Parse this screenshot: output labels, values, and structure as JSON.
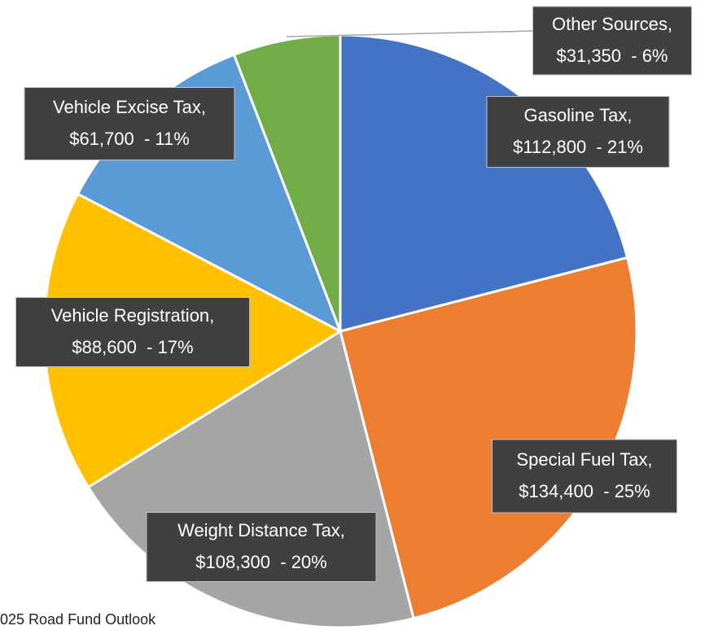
{
  "chart_data": {
    "type": "pie",
    "categories": [
      "Gasoline Tax,",
      "Special Fuel Tax,",
      "Weight Distance Tax,",
      "Vehicle Registration,",
      "Vehicle Excise Tax,",
      "Other Sources,"
    ],
    "values": [
      112800,
      134400,
      108300,
      88600,
      61700,
      31350
    ],
    "value_labels": [
      "$112,800  - 21%",
      "$134,400  - 25%",
      "$108,300  - 20%",
      "$88,600  - 17%",
      "$61,700  - 11%",
      "$31,350  - 6%"
    ],
    "colors": [
      "#4472c4",
      "#ed7d31",
      "#a5a5a5",
      "#ffc000",
      "#5b9bd5",
      "#70ad47"
    ],
    "footnote": "025 Road Fund Outlook"
  }
}
